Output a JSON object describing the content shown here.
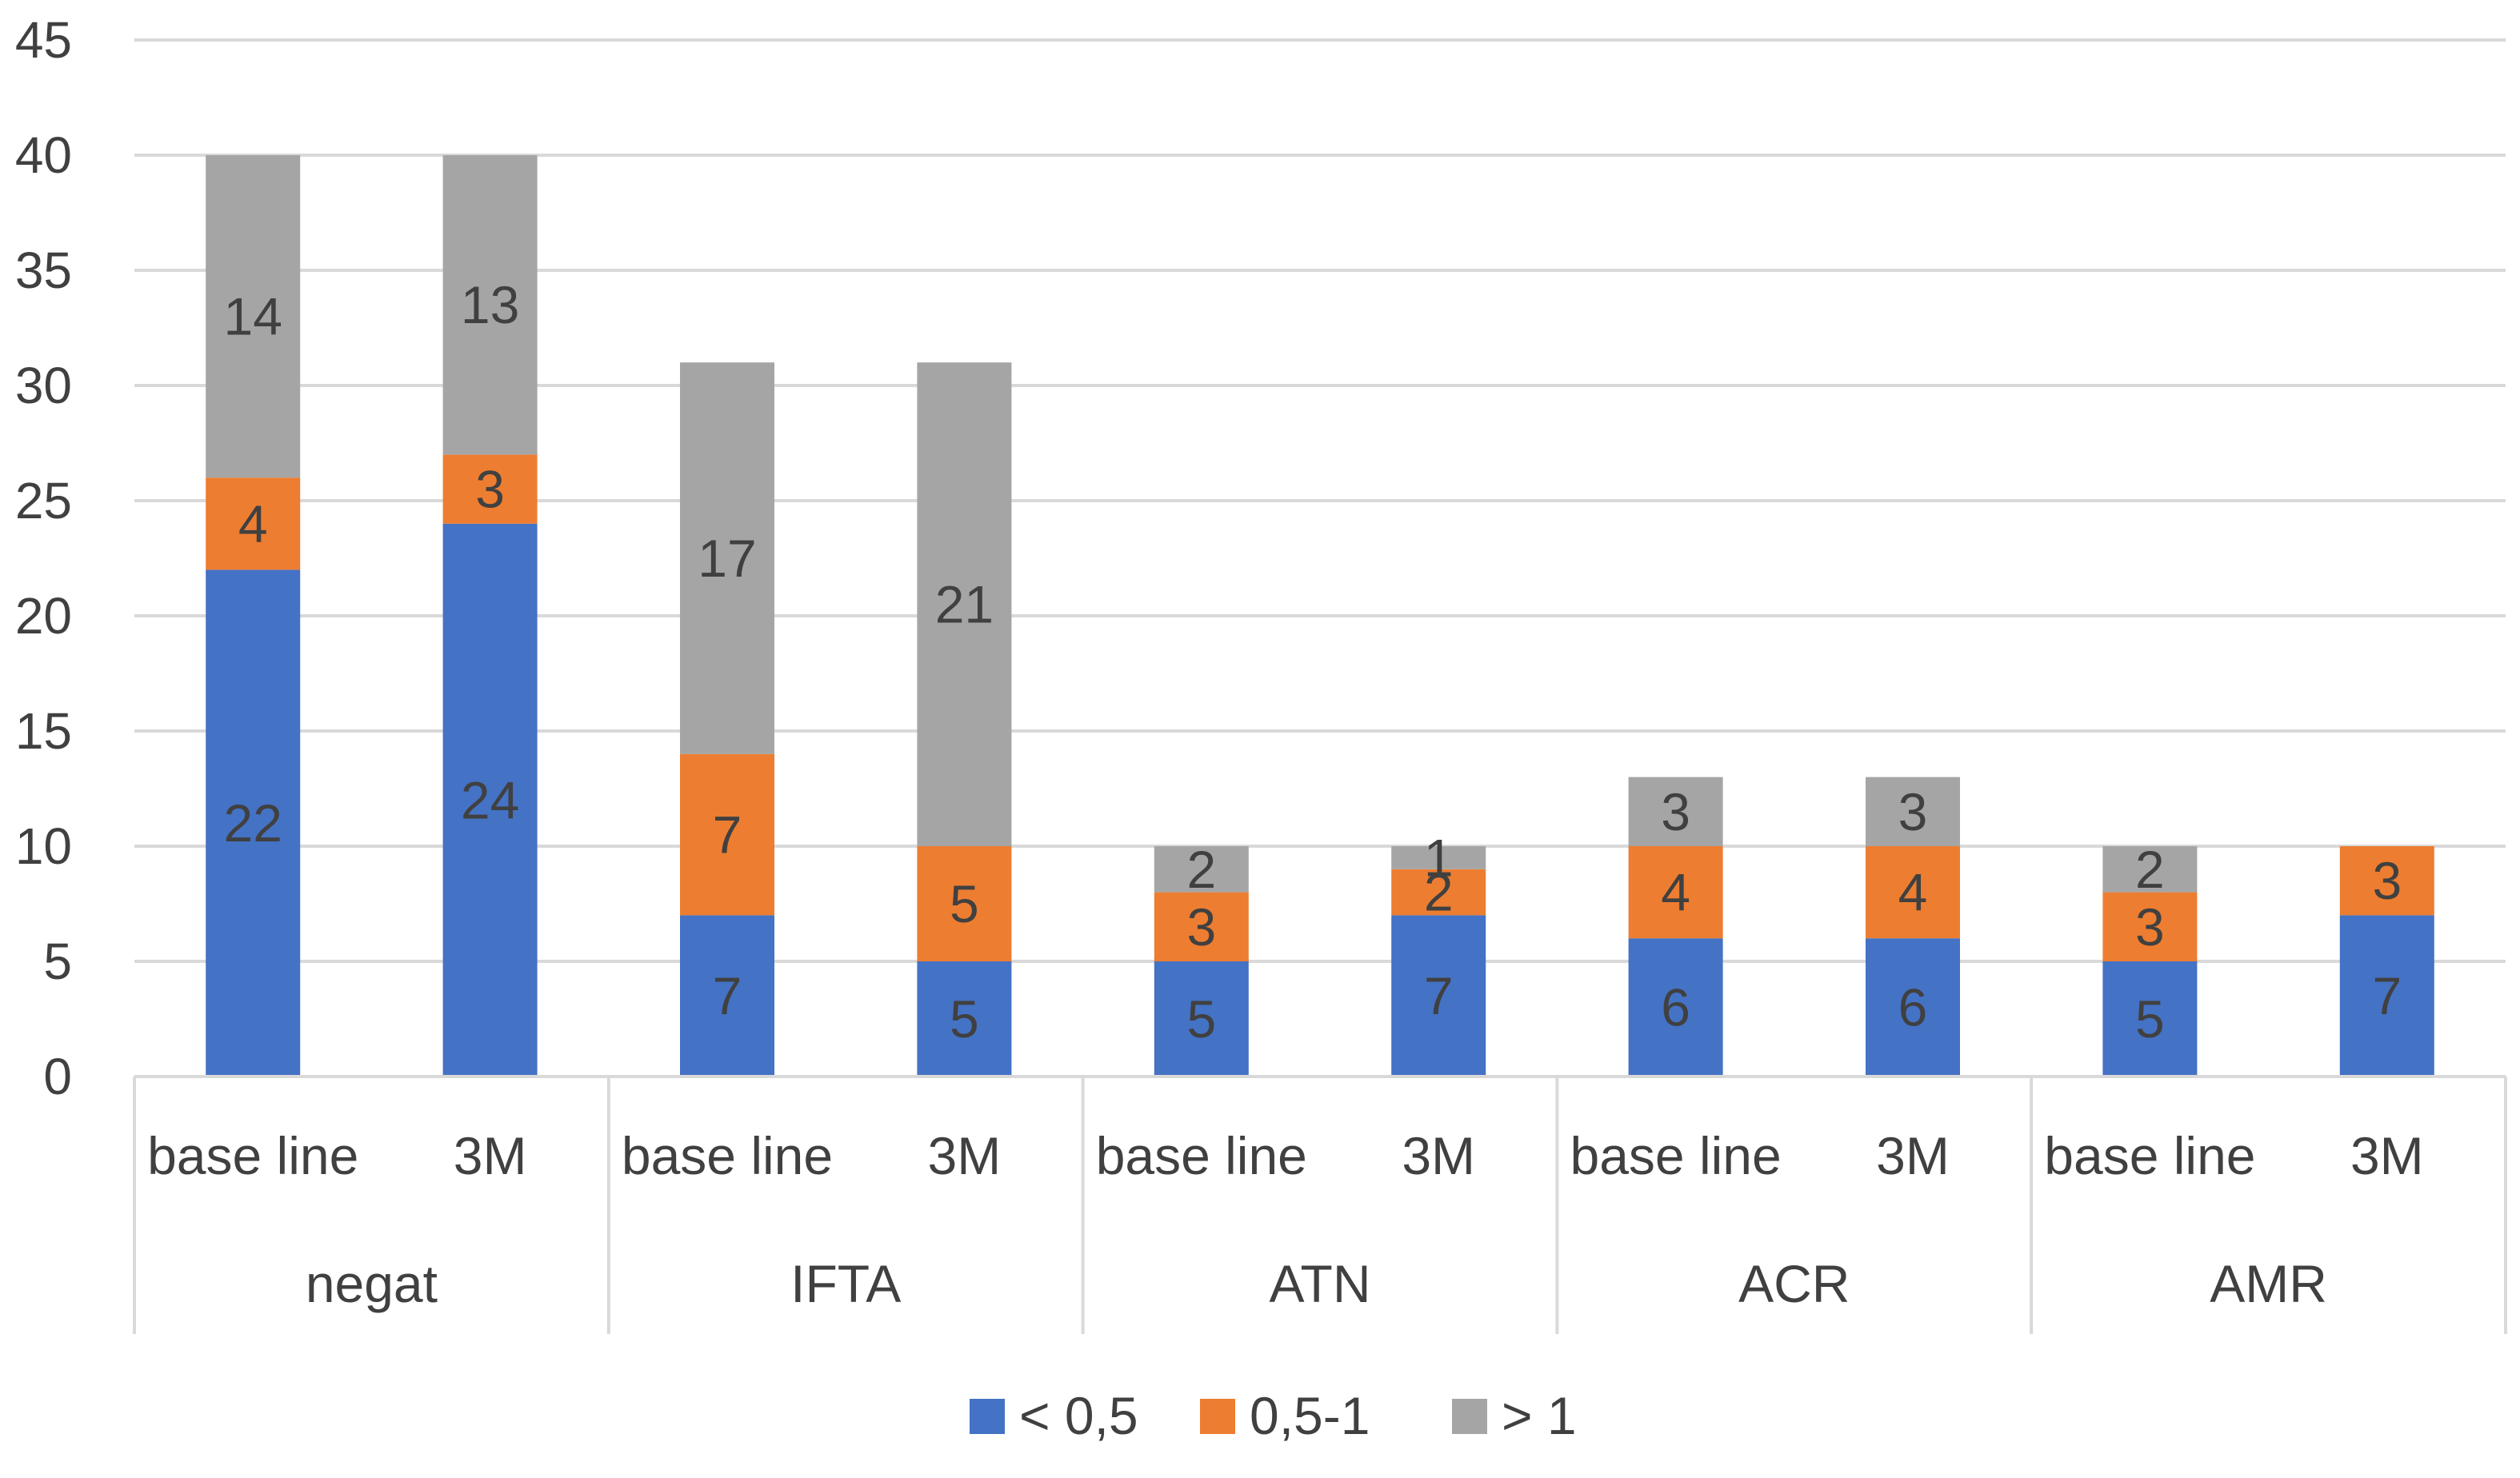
{
  "chart_data": {
    "type": "bar",
    "stacked": true,
    "title": "",
    "xlabel": "",
    "ylabel": "",
    "ylim": [
      0,
      45
    ],
    "yticks": [
      0,
      5,
      10,
      15,
      20,
      25,
      30,
      35,
      40,
      45
    ],
    "grid": true,
    "groups": [
      "negat",
      "IFTA",
      "ATN",
      "ACR",
      "AMR"
    ],
    "categories": [
      "base line",
      "3M",
      "base line",
      "3M",
      "base line",
      "3M",
      "base line",
      "3M",
      "base line",
      "3M"
    ],
    "series": [
      {
        "name": "< 0,5",
        "color": "#4472C4",
        "values": [
          22,
          24,
          7,
          5,
          5,
          7,
          6,
          6,
          5,
          7
        ]
      },
      {
        "name": "0,5-1",
        "color": "#ED7D31",
        "values": [
          4,
          3,
          7,
          5,
          3,
          2,
          4,
          4,
          3,
          3
        ]
      },
      {
        "name": "> 1",
        "color": "#A5A5A5",
        "values": [
          14,
          13,
          17,
          21,
          2,
          1,
          3,
          3,
          2,
          null
        ]
      }
    ],
    "legend_position": "bottom"
  }
}
